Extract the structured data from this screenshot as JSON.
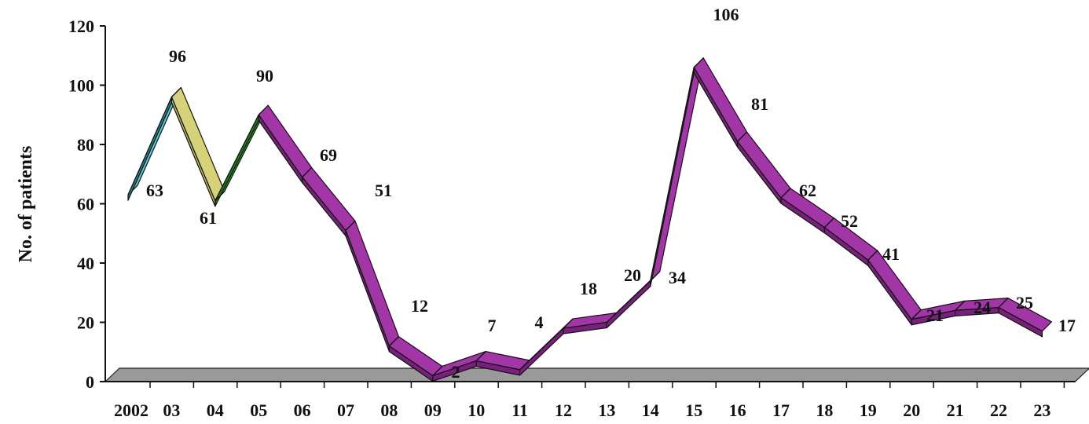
{
  "chart_data": {
    "type": "line",
    "title": "",
    "xlabel": "",
    "ylabel": "No. of patients",
    "ylim": [
      0,
      120
    ],
    "yticks": [
      "0",
      "20",
      "40",
      "60",
      "80",
      "100",
      "120"
    ],
    "categories": [
      "2002",
      "03",
      "04",
      "05",
      "06",
      "07",
      "08",
      "09",
      "10",
      "11",
      "12",
      "13",
      "14",
      "15",
      "16",
      "17",
      "18",
      "19",
      "20",
      "21",
      "22",
      "23"
    ],
    "values": [
      63,
      96,
      61,
      90,
      69,
      51,
      12,
      2,
      7,
      4,
      18,
      20,
      34,
      106,
      81,
      62,
      52,
      41,
      21,
      24,
      25,
      17
    ],
    "data_labels": [
      "63",
      "96",
      "61",
      "90",
      "69",
      "51",
      "12",
      "2",
      "7",
      "4",
      "18",
      "20",
      "34",
      "106",
      "81",
      "62",
      "52",
      "41",
      "21",
      "24",
      "25",
      "17"
    ],
    "style": "3d-ribbon",
    "grid": false,
    "legend": "none",
    "colors": {
      "segment_front": [
        "#5fc4d8",
        "#d6d27a",
        "#2a9a2a",
        "#a236a6"
      ],
      "segment_top": [
        "#1f7f86",
        "#bdb85a",
        "#1f7a1f",
        "#7a1f7e"
      ],
      "floor": "#9a9a9a",
      "axis": "#111111"
    }
  }
}
